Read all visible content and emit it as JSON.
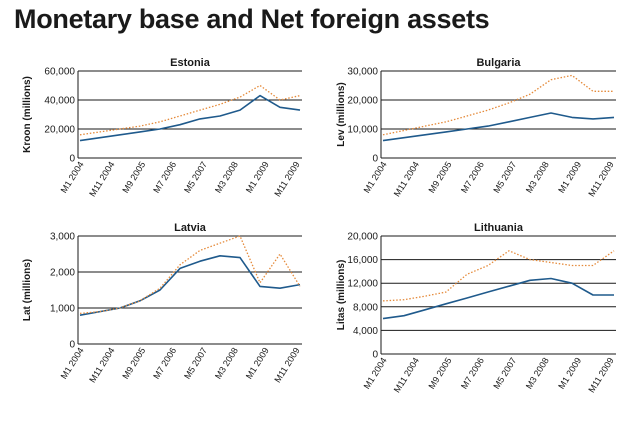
{
  "title": "Monetary base and Net foreign assets",
  "colors": {
    "monetary_base": "#1f5a8c",
    "net_foreign_assets": "#e58a3a",
    "grid": "#1a1a1a",
    "text": "#1a1a1a"
  },
  "chart_data": [
    {
      "type": "line",
      "title": "Estonia",
      "ylabel": "Kroon (millions)",
      "ylim": [
        0,
        60000
      ],
      "yticks": [
        "0",
        "20,000",
        "40,000",
        "60,000"
      ],
      "xticks": [
        "M1 2004",
        "M11 2004",
        "M9 2005",
        "M7 2006",
        "M5 2007",
        "M3 2008",
        "M1 2009",
        "M11 2009"
      ],
      "series": [
        {
          "name": "Monetary base",
          "style": "solid",
          "values": [
            12000,
            14000,
            16000,
            18000,
            20000,
            23000,
            27000,
            29000,
            33000,
            43000,
            35000,
            33000
          ]
        },
        {
          "name": "Net foreign assets",
          "style": "dotted",
          "values": [
            16000,
            18000,
            20000,
            22000,
            25000,
            29000,
            33000,
            37000,
            42000,
            50000,
            40000,
            43000
          ]
        }
      ]
    },
    {
      "type": "line",
      "title": "Bulgaria",
      "ylabel": "Lev (millions)",
      "ylim": [
        0,
        30000
      ],
      "yticks": [
        "0",
        "10,000",
        "20,000",
        "30,000"
      ],
      "xticks": [
        "M1 2004",
        "M11 2004",
        "M9 2005",
        "M7 2006",
        "M5 2007",
        "M3 2008",
        "M1 2009",
        "M11 2009"
      ],
      "series": [
        {
          "name": "Monetary base",
          "style": "solid",
          "values": [
            6000,
            7000,
            8000,
            9000,
            10000,
            11000,
            12500,
            14000,
            15500,
            14000,
            13500,
            14000
          ]
        },
        {
          "name": "Net foreign assets",
          "style": "dotted",
          "values": [
            8000,
            9500,
            11000,
            12500,
            14500,
            16500,
            19000,
            22000,
            27000,
            28500,
            23000,
            23000
          ]
        }
      ]
    },
    {
      "type": "line",
      "title": "Latvia",
      "ylabel": "Lat (millions)",
      "ylim": [
        0,
        3000
      ],
      "yticks": [
        "0",
        "1,000",
        "2,000",
        "3,000"
      ],
      "xticks": [
        "M1 2004",
        "M11 2004",
        "M9 2005",
        "M7 2006",
        "M5 2007",
        "M3 2008",
        "M1 2009",
        "M11 2009"
      ],
      "series": [
        {
          "name": "Monetary base",
          "style": "solid",
          "values": [
            800,
            900,
            1000,
            1200,
            1500,
            2100,
            2300,
            2450,
            2400,
            1600,
            1550,
            1650
          ]
        },
        {
          "name": "Net foreign assets",
          "style": "dotted",
          "values": [
            850,
            900,
            1000,
            1200,
            1550,
            2200,
            2600,
            2800,
            3000,
            1700,
            2500,
            1600
          ]
        }
      ]
    },
    {
      "type": "line",
      "title": "Lithuania",
      "ylabel": "Litas (millions)",
      "ylim": [
        0,
        20000
      ],
      "yticks": [
        "0",
        "4,000",
        "8,000",
        "12,000",
        "16,000",
        "20,000"
      ],
      "xticks": [
        "M1 2004",
        "M11 2004",
        "M9 2005",
        "M7 2006",
        "M5 2007",
        "M3 2008",
        "M1 2009",
        "M11 2009"
      ],
      "series": [
        {
          "name": "Monetary base",
          "style": "solid",
          "values": [
            6000,
            6500,
            7500,
            8500,
            9500,
            10500,
            11500,
            12500,
            12800,
            12000,
            10000,
            10000
          ]
        },
        {
          "name": "Net foreign assets",
          "style": "dotted",
          "values": [
            9000,
            9200,
            9800,
            10500,
            13500,
            15000,
            17500,
            16000,
            15500,
            15000,
            15000,
            17500
          ]
        }
      ]
    }
  ]
}
